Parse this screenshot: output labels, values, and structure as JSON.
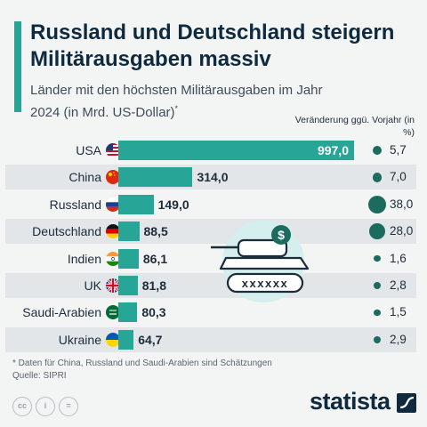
{
  "header": {
    "title": "Russland und Deutschland steigern Militärausgaben massiv",
    "subtitle": "Länder mit den höchsten Militärausgaben im Jahr 2024 (in Mrd. US-Dollar)",
    "subtitle_mark": "*",
    "change_label": "Veränderung ggü. Vorjahr (in %)"
  },
  "colors": {
    "accent": "#2aa395",
    "bar": "#27a596",
    "dot": "#1b6b5f",
    "title": "#0f2a3f",
    "row_shade": "#e3e6e8"
  },
  "chart_data": {
    "type": "bar",
    "orientation": "horizontal",
    "categories": [
      "USA",
      "China",
      "Russland",
      "Deutschland",
      "Indien",
      "UK",
      "Saudi-Arabien",
      "Ukraine"
    ],
    "values": [
      997.0,
      314.0,
      149.0,
      88.5,
      86.1,
      81.8,
      80.3,
      64.7
    ],
    "value_labels": [
      "997,0",
      "314,0",
      "149,0",
      "88,5",
      "86,1",
      "81,8",
      "80,3",
      "64,7"
    ],
    "change_values": [
      5.7,
      7.0,
      38.0,
      28.0,
      1.6,
      2.8,
      1.5,
      2.9
    ],
    "change_labels": [
      "5,7",
      "7,0",
      "38,0",
      "28,0",
      "1,6",
      "2,8",
      "1,5",
      "2,9"
    ],
    "flags": [
      "us-flag-icon",
      "china-flag-icon",
      "russia-flag-icon",
      "germany-flag-icon",
      "india-flag-icon",
      "uk-flag-icon",
      "saudi-arabia-flag-icon",
      "ukraine-flag-icon"
    ],
    "xlim": [
      0,
      997
    ]
  },
  "illustration": {
    "icon": "tank-dollar-icon",
    "symbol": "$",
    "track_marks": "xxxxxx"
  },
  "footer": {
    "note": "* Daten für China, Russland und Saudi-Arabien sind Schätzungen",
    "source": "Quelle: SIPRI",
    "license_icons": [
      "cc",
      "i",
      "="
    ],
    "brand": "statista"
  }
}
